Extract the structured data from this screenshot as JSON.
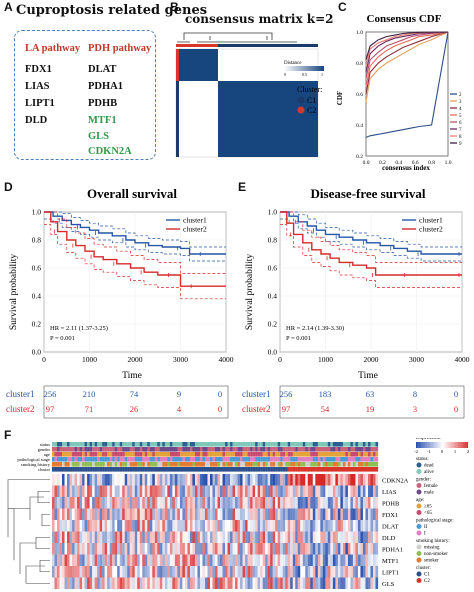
{
  "panels": {
    "a": "A",
    "b": "B",
    "c": "C",
    "d": "D",
    "e": "E",
    "f": "F"
  },
  "panel_a": {
    "title": "Cuproptosis related genes",
    "la_header": "LA pathway",
    "pdh_header": "PDH pathway",
    "la_genes": [
      "FDX1",
      "LIAS",
      "LIPT1",
      "DLD"
    ],
    "pdh_genes": [
      "DLAT",
      "PDHA1",
      "PDHB"
    ],
    "negative_genes": [
      "MTF1",
      "GLS",
      "CDKN2A"
    ],
    "colors": {
      "la": "#c0392b",
      "pdh": "#c0392b",
      "neg": "#2e9a4a",
      "text": "#111111",
      "border": "#4a7fc0"
    }
  },
  "panel_b": {
    "title": "consensus matrix k=2",
    "legend_title": "Distance",
    "legend_ticks": [
      "0",
      "0.5",
      "1"
    ],
    "cluster_title": "Cluster:",
    "clusters": [
      "C1",
      "C2"
    ],
    "colors": {
      "c1": "#1a3a6b",
      "c2": "#d9352b",
      "matrix": "#17467f",
      "bg": "#ffffff"
    },
    "cluster_fraction": 0.3
  },
  "chart_data": [
    {
      "type": "line",
      "title": "Consensus CDF",
      "xlabel": "consensus index",
      "ylabel": "CDF",
      "x_ticks": [
        "0.0",
        "0.2",
        "0.4",
        "0.6",
        "0.8",
        "1.0"
      ],
      "y_ticks": [
        "0.2",
        "0.4",
        "0.6",
        "0.8",
        "1.0"
      ],
      "xlim": [
        0,
        1
      ],
      "ylim": [
        0.2,
        1.0
      ],
      "legend_labels": [
        "2",
        "3",
        "4",
        "5",
        "6",
        "7",
        "8",
        "9"
      ],
      "series": [
        {
          "name": "2",
          "color": "#2c4f8a",
          "values": [
            0.32,
            0.33,
            0.34,
            0.35,
            0.36,
            0.37,
            0.38,
            0.39,
            0.4,
            1.0
          ]
        },
        {
          "name": "3",
          "color": "#e6a15d",
          "values": [
            0.55,
            0.7,
            0.76,
            0.8,
            0.83,
            0.86,
            0.89,
            0.92,
            0.95,
            1.0
          ]
        },
        {
          "name": "4",
          "color": "#8c2d3a",
          "values": [
            0.6,
            0.74,
            0.8,
            0.84,
            0.87,
            0.9,
            0.92,
            0.94,
            0.97,
            1.0
          ]
        },
        {
          "name": "5",
          "color": "#e86d5a",
          "values": [
            0.65,
            0.78,
            0.84,
            0.88,
            0.91,
            0.93,
            0.95,
            0.97,
            0.98,
            1.0
          ]
        },
        {
          "name": "6",
          "color": "#b8506e",
          "values": [
            0.7,
            0.82,
            0.87,
            0.91,
            0.93,
            0.95,
            0.97,
            0.98,
            0.99,
            1.0
          ]
        },
        {
          "name": "7",
          "color": "#6a2a60",
          "values": [
            0.74,
            0.86,
            0.91,
            0.94,
            0.96,
            0.97,
            0.98,
            0.99,
            0.995,
            1.0
          ]
        },
        {
          "name": "8",
          "color": "#f07e78",
          "values": [
            0.78,
            0.89,
            0.93,
            0.95,
            0.97,
            0.98,
            0.99,
            0.995,
            0.998,
            1.0
          ]
        },
        {
          "name": "9",
          "color": "#3d1f3f",
          "values": [
            0.82,
            0.91,
            0.95,
            0.97,
            0.98,
            0.99,
            0.995,
            0.998,
            0.999,
            1.0
          ]
        }
      ],
      "x": [
        0.0,
        0.05,
        0.15,
        0.25,
        0.35,
        0.45,
        0.55,
        0.65,
        0.8,
        1.0
      ]
    },
    {
      "type": "line",
      "title": "Overall survival",
      "xlabel": "Time",
      "ylabel": "Survival probability",
      "xlim": [
        0,
        4000
      ],
      "ylim": [
        0,
        1.0
      ],
      "x_ticks": [
        "0",
        "1000",
        "2000",
        "3000",
        "4000"
      ],
      "y_ticks": [
        "0.0",
        "0.2",
        "0.4",
        "0.6",
        "0.8",
        "1.0"
      ],
      "legend": [
        "cluster1",
        "cluster2"
      ],
      "annotation_hr": "HR = 2.11 (1.37-3.25)",
      "annotation_p": "P = 0.001",
      "series": [
        {
          "name": "cluster1",
          "color": "#2457a6",
          "x": [
            0,
            200,
            400,
            600,
            800,
            1000,
            1200,
            1500,
            1800,
            2000,
            2300,
            2600,
            3000,
            3200,
            3500,
            4000
          ],
          "y": [
            1.0,
            0.97,
            0.94,
            0.91,
            0.89,
            0.87,
            0.85,
            0.83,
            0.8,
            0.78,
            0.76,
            0.75,
            0.74,
            0.7,
            0.7,
            0.7
          ]
        },
        {
          "name": "cluster2",
          "color": "#d62a2a",
          "x": [
            0,
            150,
            300,
            500,
            700,
            900,
            1100,
            1300,
            1600,
            1900,
            2200,
            2500,
            2800,
            3000,
            3300,
            4000
          ],
          "y": [
            1.0,
            0.93,
            0.86,
            0.8,
            0.76,
            0.72,
            0.68,
            0.66,
            0.63,
            0.6,
            0.57,
            0.55,
            0.55,
            0.47,
            0.47,
            0.47
          ]
        }
      ],
      "risk_table": {
        "cluster1": [
          "256",
          "210",
          "74",
          "9",
          "0"
        ],
        "cluster2": [
          "97",
          "71",
          "26",
          "4",
          "0"
        ]
      }
    },
    {
      "type": "line",
      "title": "Disease-free survival",
      "xlabel": "Time",
      "ylabel": "Survival probability",
      "xlim": [
        0,
        4000
      ],
      "ylim": [
        0,
        1.0
      ],
      "x_ticks": [
        "0",
        "1000",
        "2000",
        "3000",
        "4000"
      ],
      "y_ticks": [
        "0.0",
        "0.2",
        "0.4",
        "0.6",
        "0.8",
        "1.0"
      ],
      "legend": [
        "cluster1",
        "cluster2"
      ],
      "annotation_hr": "HR = 2.14 (1.39-3.30)",
      "annotation_p": "P = 0.001",
      "series": [
        {
          "name": "cluster1",
          "color": "#2457a6",
          "x": [
            0,
            200,
            400,
            600,
            800,
            1000,
            1300,
            1600,
            1900,
            2200,
            2500,
            2800,
            3100,
            3400,
            4000
          ],
          "y": [
            1.0,
            0.97,
            0.93,
            0.9,
            0.87,
            0.84,
            0.82,
            0.8,
            0.78,
            0.76,
            0.74,
            0.72,
            0.7,
            0.7,
            0.7
          ]
        },
        {
          "name": "cluster2",
          "color": "#d62a2a",
          "x": [
            0,
            150,
            300,
            500,
            700,
            900,
            1100,
            1300,
            1600,
            1900,
            2100,
            2400,
            2800,
            3200,
            4000
          ],
          "y": [
            1.0,
            0.92,
            0.84,
            0.78,
            0.73,
            0.7,
            0.67,
            0.64,
            0.62,
            0.6,
            0.55,
            0.55,
            0.55,
            0.55,
            0.55
          ]
        }
      ],
      "risk_table": {
        "cluster1": [
          "256",
          "183",
          "63",
          "8",
          "0"
        ],
        "cluster2": [
          "97",
          "54",
          "19",
          "3",
          "0"
        ]
      }
    },
    {
      "type": "heatmap",
      "row_labels": [
        "CDKN2A",
        "LIAS",
        "PDHB",
        "FDX1",
        "DLAT",
        "DLD",
        "PDHA1",
        "MTF1",
        "LIPT1",
        "GLS"
      ],
      "annotation_rows": [
        "status",
        "gender",
        "age",
        "pathological stage",
        "smoking history",
        "cluster"
      ],
      "legend_title": "Expression",
      "legend_ticks": [
        "-2",
        "-1",
        "0",
        "1",
        "2"
      ],
      "legend_groups": [
        {
          "title": "status:",
          "items": [
            {
              "label": "dead",
              "color": "#2c5f91"
            },
            {
              "label": "alive",
              "color": "#7fc8b9"
            }
          ]
        },
        {
          "title": "gender:",
          "items": [
            {
              "label": "female",
              "color": "#c9627b"
            },
            {
              "label": "male",
              "color": "#6d4a8a"
            }
          ]
        },
        {
          "title": "age:",
          "items": [
            {
              "label": "≥65",
              "color": "#e4a33a"
            },
            {
              "label": "<65",
              "color": "#c94a6e"
            }
          ]
        },
        {
          "title": "pathological stage:",
          "items": [
            {
              "label": "II",
              "color": "#4a9bd5"
            },
            {
              "label": "I",
              "color": "#e37fc0"
            }
          ]
        },
        {
          "title": "smoking history:",
          "items": [
            {
              "label": "missing",
              "color": "#cfcfcf"
            },
            {
              "label": "non-smoker",
              "color": "#8fbf4e"
            },
            {
              "label": "smoker",
              "color": "#e47b30"
            }
          ]
        },
        {
          "title": "cluster:",
          "items": [
            {
              "label": "C1",
              "color": "#2b4e8c"
            },
            {
              "label": "C2",
              "color": "#d9352b"
            }
          ]
        }
      ],
      "c2_fraction": 0.275
    }
  ]
}
